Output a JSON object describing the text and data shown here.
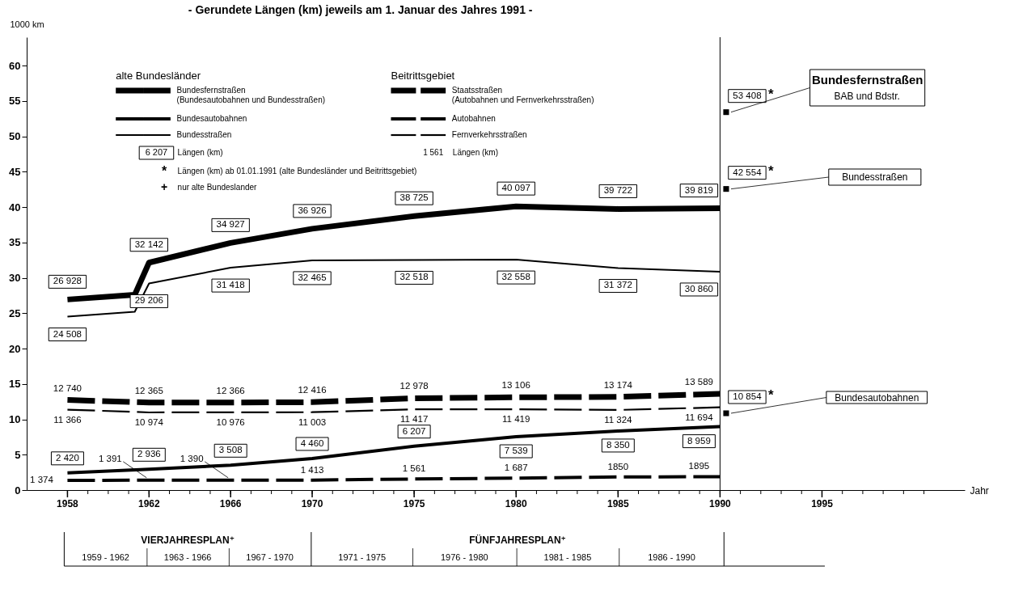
{
  "chart_data": {
    "type": "line",
    "title": "- Gerundete Längen (km) jeweils am 1. Januar des Jahres 1991 -",
    "xlabel": "Jahr",
    "ylabel": "1000 km",
    "xlim": [
      1956,
      2002
    ],
    "ylim": [
      0,
      64
    ],
    "xticks": [
      1958,
      {
        "value": 1959,
        "label": null
      },
      {
        "value": 1960,
        "label": null
      },
      {
        "value": 1961,
        "label": null
      },
      1962,
      {
        "value": 1963,
        "label": null
      },
      {
        "value": 1964,
        "label": null
      },
      {
        "value": 1965,
        "label": null
      },
      1966,
      {
        "value": 1967,
        "label": null
      },
      {
        "value": 1968,
        "label": null
      },
      {
        "value": 1969,
        "label": null
      },
      1970,
      {
        "value": 1971,
        "label": null
      },
      {
        "value": 1972,
        "label": null
      },
      {
        "value": 1973,
        "label": null
      },
      {
        "value": 1974,
        "label": null
      },
      1975,
      {
        "value": 1976,
        "label": null
      },
      {
        "value": 1977,
        "label": null
      },
      {
        "value": 1978,
        "label": null
      },
      {
        "value": 1979,
        "label": null
      },
      1980,
      {
        "value": 1981,
        "label": null
      },
      {
        "value": 1982,
        "label": null
      },
      {
        "value": 1983,
        "label": null
      },
      {
        "value": 1984,
        "label": null
      },
      1985,
      {
        "value": 1986,
        "label": null
      },
      {
        "value": 1987,
        "label": null
      },
      {
        "value": 1988,
        "label": null
      },
      {
        "value": 1989,
        "label": null
      },
      1990,
      {
        "value": 1991,
        "label": null
      },
      {
        "value": 1992,
        "label": null
      },
      {
        "value": 1993,
        "label": null
      },
      {
        "value": 1994,
        "label": null
      },
      1995,
      {
        "value": 1996,
        "label": null
      },
      {
        "value": 1997,
        "label": null
      },
      {
        "value": 1998,
        "label": null
      },
      {
        "value": 1999,
        "label": null
      },
      {
        "value": 2000,
        "label": null
      }
    ],
    "yticks": [
      0,
      5,
      10,
      15,
      20,
      25,
      30,
      35,
      40,
      45,
      50,
      55,
      60
    ],
    "legend": "top",
    "ref_lines": [
      {
        "axis": "x",
        "value": 1990,
        "color": "#000000"
      }
    ],
    "series": [
      {
        "name": "Bundesfernstraßen\n(Bundesautobahnen und Bundesstraßen)",
        "color": "#000000",
        "line_style": "solid",
        "x": [
          1958,
          1961.3,
          1962,
          1966,
          1970,
          1975,
          1980,
          1985,
          1990
        ],
        "values": [
          26.928,
          27.6,
          32.142,
          34.927,
          36.926,
          38.725,
          40.097,
          39.722,
          39.819
        ]
      },
      {
        "name": "Bundesautobahnen",
        "color": "#000000",
        "line_style": "solid",
        "x": [
          1958,
          1962,
          1966,
          1970,
          1975,
          1980,
          1985,
          1990
        ],
        "values": [
          2.42,
          2.936,
          3.508,
          4.46,
          6.207,
          7.539,
          8.35,
          8.959
        ]
      },
      {
        "name": "Bundesstraßen",
        "color": "#000000",
        "line_style": "solid",
        "x": [
          1958,
          1961.3,
          1962,
          1966,
          1970,
          1975,
          1980,
          1985,
          1990
        ],
        "values": [
          24.508,
          25.2,
          29.206,
          31.418,
          32.465,
          32.518,
          32.558,
          31.372,
          30.86
        ]
      },
      {
        "name": "Staatsstraßen\n(Autobahnen und Fernverkehrsstraßen)",
        "color": "#000000",
        "line_style": "dashed",
        "x": [
          1958,
          1962,
          1966,
          1970,
          1975,
          1980,
          1985,
          1990
        ],
        "values": [
          12.74,
          12.365,
          12.366,
          12.416,
          12.978,
          13.106,
          13.174,
          13.589
        ]
      },
      {
        "name": "Autobahnen",
        "color": "#000000",
        "line_style": "dashed",
        "x": [
          1958,
          1962,
          1966,
          1970,
          1975,
          1980,
          1985,
          1990
        ],
        "values": [
          1.374,
          1.391,
          1.39,
          1.413,
          1.561,
          1.687,
          1.85,
          1.895
        ]
      },
      {
        "name": "Fernverkehrsstraßen",
        "color": "#000000",
        "line_style": "dashed",
        "x": [
          1958,
          1962,
          1966,
          1970,
          1975,
          1980,
          1985,
          1990
        ],
        "values": [
          11.366,
          10.974,
          10.976,
          11.003,
          11.417,
          11.419,
          11.324,
          11.694
        ]
      },
      {
        "name": "Bundesfernstraßen",
        "type": "scatter",
        "marker": "square",
        "color": "#000000",
        "x": [
          1990.3
        ],
        "values": [
          53.408
        ]
      },
      {
        "name": "Bundesstraßen",
        "type": "scatter",
        "marker": "square",
        "color": "#000000",
        "x": [
          1990.3
        ],
        "values": [
          42.554
        ]
      },
      {
        "name": "Bundesautobahnen",
        "type": "scatter",
        "marker": "square",
        "color": "#000000",
        "x": [
          1990.3
        ],
        "values": [
          10.854
        ]
      }
    ],
    "annotations": [
      "alte Bundesländer",
      "Beitrittsgebiet",
      "6 207",
      "Längen (km)",
      "1 561",
      "Längen (km)",
      "*",
      "Längen (km) ab 01.01.1991 (alte Bundesländer und Beitrittsgebiet)",
      "+",
      "nur alte Bundeslander",
      "BAB und Bdstr.",
      "VIERJAHRESPLAN⁺",
      "FÜNFJAHRESPLAN⁺",
      "1959 - 1962",
      "1963 - 1966",
      "1967 - 1970",
      "1971 - 1975",
      "1976 - 1980",
      "1981 - 1985",
      "1986 - 1990",
      "*",
      "*",
      "*",
      {
        "text": "26 928",
        "x": 1958,
        "y": 26.928
      },
      {
        "text": "32 142",
        "x": 1962,
        "y": 32.142
      },
      {
        "text": "34 927",
        "x": 1966,
        "y": 34.927
      },
      {
        "text": "36 926",
        "x": 1970,
        "y": 36.926
      },
      {
        "text": "38 725",
        "x": 1975,
        "y": 38.725
      },
      {
        "text": "40 097",
        "x": 1980,
        "y": 40.097
      },
      {
        "text": "39 722",
        "x": 1985,
        "y": 39.722
      },
      {
        "text": "39 819",
        "x": 1990,
        "y": 39.819
      },
      {
        "text": "2 420",
        "x": 1958,
        "y": 2.42
      },
      {
        "text": "2 936",
        "x": 1962,
        "y": 2.936
      },
      {
        "text": "3 508",
        "x": 1966,
        "y": 3.508
      },
      {
        "text": "4 460",
        "x": 1970,
        "y": 4.46
      },
      {
        "text": "6 207",
        "x": 1975,
        "y": 6.207
      },
      {
        "text": "7 539",
        "x": 1980,
        "y": 7.539
      },
      {
        "text": "8 350",
        "x": 1985,
        "y": 8.35
      },
      {
        "text": "8 959",
        "x": 1990,
        "y": 8.959
      },
      {
        "text": "24 508",
        "x": 1958,
        "y": 24.508
      },
      {
        "text": "29 206",
        "x": 1962,
        "y": 29.206
      },
      {
        "text": "31 418",
        "x": 1966,
        "y": 31.418
      },
      {
        "text": "32 465",
        "x": 1970,
        "y": 32.465
      },
      {
        "text": "32 518",
        "x": 1975,
        "y": 32.518
      },
      {
        "text": "32 558",
        "x": 1980,
        "y": 32.558
      },
      {
        "text": "31 372",
        "x": 1985,
        "y": 31.372
      },
      {
        "text": "30 860",
        "x": 1990,
        "y": 30.86
      },
      {
        "text": "12 740",
        "x": 1958,
        "y": 12.74
      },
      {
        "text": "12 365",
        "x": 1962,
        "y": 12.365
      },
      {
        "text": "12 366",
        "x": 1966,
        "y": 12.366
      },
      {
        "text": "12 416",
        "x": 1970,
        "y": 12.416
      },
      {
        "text": "12 978",
        "x": 1975,
        "y": 12.978
      },
      {
        "text": "13 106",
        "x": 1980,
        "y": 13.106
      },
      {
        "text": "13 174",
        "x": 1985,
        "y": 13.174
      },
      {
        "text": "13 589",
        "x": 1990,
        "y": 13.589
      },
      {
        "text": "1 374",
        "x": 1958,
        "y": 1.374
      },
      {
        "text": "1 391",
        "x": 1962,
        "y": 1.391
      },
      {
        "text": "1 390",
        "x": 1966,
        "y": 1.39
      },
      {
        "text": "1 413",
        "x": 1970,
        "y": 1.413
      },
      {
        "text": "1 561",
        "x": 1975,
        "y": 1.561
      },
      {
        "text": "1 687",
        "x": 1980,
        "y": 1.687
      },
      {
        "text": "1850",
        "x": 1985,
        "y": 1.85
      },
      {
        "text": "1895",
        "x": 1990,
        "y": 1.895
      },
      {
        "text": "11 366",
        "x": 1958,
        "y": 11.366
      },
      {
        "text": "10 974",
        "x": 1962,
        "y": 10.974
      },
      {
        "text": "10 976",
        "x": 1966,
        "y": 10.976
      },
      {
        "text": "11 003",
        "x": 1970,
        "y": 11.003
      },
      {
        "text": "11 417",
        "x": 1975,
        "y": 11.417
      },
      {
        "text": "11 419",
        "x": 1980,
        "y": 11.419
      },
      {
        "text": "11 324",
        "x": 1985,
        "y": 11.324
      },
      {
        "text": "11 694",
        "x": 1990,
        "y": 11.694
      },
      {
        "text": "53 408",
        "x": 1990.3,
        "y": 53.408
      },
      {
        "text": "42 554",
        "x": 1990.3,
        "y": 42.554
      },
      {
        "text": "10 854",
        "x": 1990.3,
        "y": 10.854
      }
    ]
  }
}
